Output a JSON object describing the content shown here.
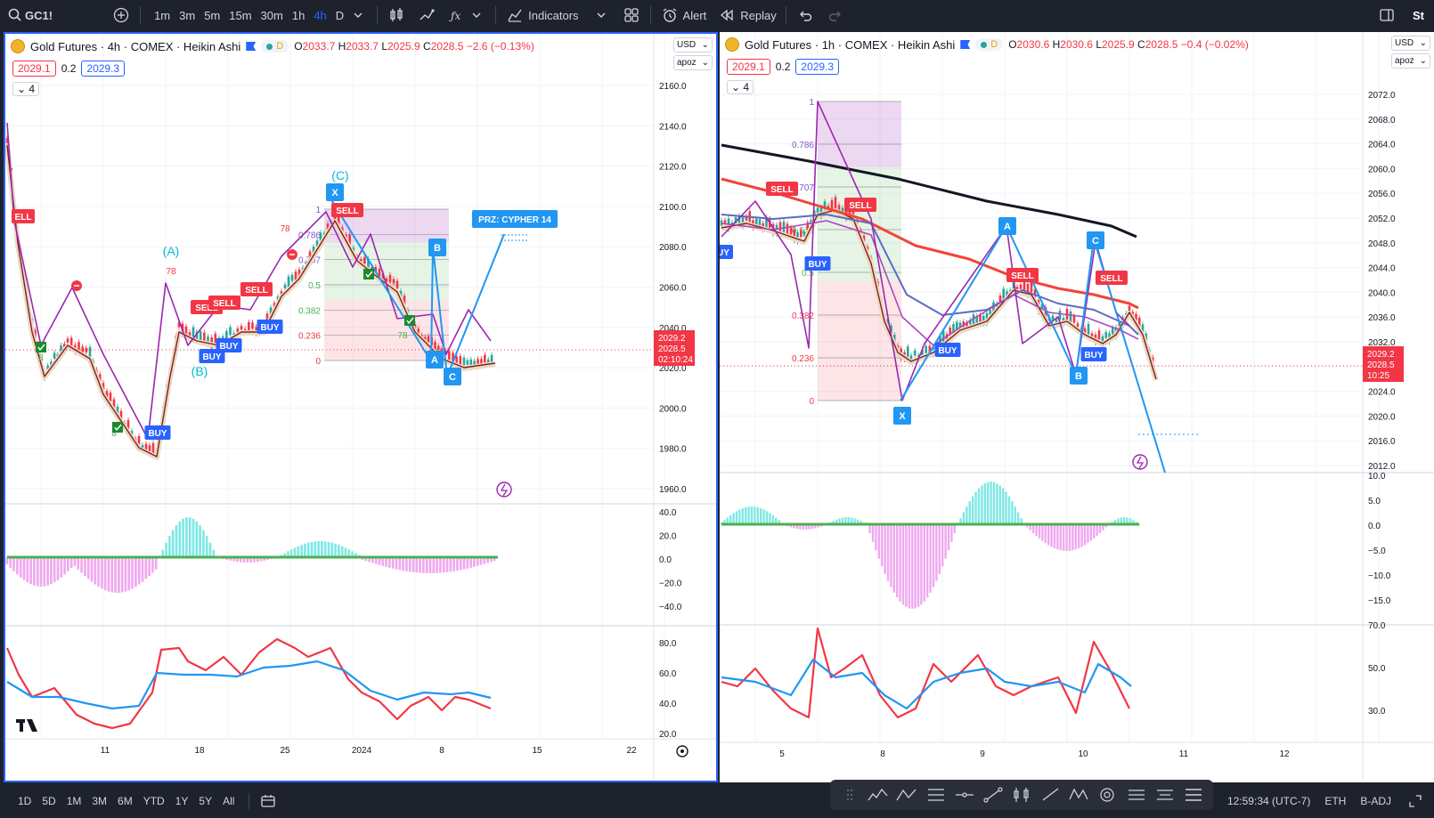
{
  "toolbar": {
    "symbol": "GC1!",
    "timeframes": [
      "1m",
      "3m",
      "5m",
      "15m",
      "30m",
      "1h",
      "4h",
      "D"
    ],
    "active_timeframe": "4h",
    "indicators_label": "Indicators",
    "alert_label": "Alert",
    "replay_label": "Replay",
    "right_cut": "St"
  },
  "left": {
    "title": "Gold Futures · 4h · COMEX · Heikin Ashi",
    "badge": "D",
    "o_label": "O",
    "o": "2033.7",
    "h_label": "H",
    "h": "2033.7",
    "l_label": "L",
    "l": "2025.9",
    "c_label": "C",
    "c": "2028.5",
    "change": "−2.6 (−0.13%)",
    "bid": "2029.1",
    "spread": "0.2",
    "ask": "2029.3",
    "collapse": "4",
    "currency": "USD",
    "scale": "apoz",
    "price_ticks": [
      "2160.0",
      "2140.0",
      "2120.0",
      "2100.0",
      "2080.0",
      "2060.0",
      "2040.0",
      "2020.0",
      "2000.0",
      "1980.0",
      "1960.0"
    ],
    "osc1_ticks": [
      "40.0",
      "20.0",
      "0.0",
      "−20.0",
      "−40.0"
    ],
    "osc2_ticks": [
      "80.0",
      "60.0",
      "40.0",
      "20.0"
    ],
    "time_ticks": [
      "11",
      "18",
      "25",
      "2024",
      "8",
      "15",
      "22"
    ],
    "price_tag_1": "2029.2",
    "price_tag_2": "2028.5",
    "countdown": "02:10:24",
    "wave_labels": [
      "(A)",
      "(B)",
      "(C)"
    ],
    "prz_label": "PRZ: CYPHER 14",
    "points": [
      "X",
      "A",
      "B",
      "C"
    ],
    "fib": [
      "1",
      "0.786",
      "0.707",
      "0.5",
      "0.382",
      "0.236",
      "0"
    ],
    "signals": {
      "sell": "SELL",
      "buy": "BUY",
      "cut_sell": "ELL",
      "cut_buy": "UY"
    },
    "small_digits": [
      "7",
      "8",
      "78",
      "11"
    ]
  },
  "right": {
    "title": "Gold Futures · 1h · COMEX · Heikin Ashi",
    "badge": "D",
    "o_label": "O",
    "o": "2030.6",
    "h_label": "H",
    "h": "2030.6",
    "l_label": "L",
    "l": "2025.9",
    "c_label": "C",
    "c": "2028.5",
    "change": "−0.4 (−0.02%)",
    "bid": "2029.1",
    "spread": "0.2",
    "ask": "2029.3",
    "collapse": "4",
    "currency": "USD",
    "scale": "apoz",
    "price_ticks": [
      "2072.0",
      "2068.0",
      "2064.0",
      "2060.0",
      "2056.0",
      "2052.0",
      "2048.0",
      "2044.0",
      "2040.0",
      "2036.0",
      "2032.0",
      "2028.0",
      "2024.0",
      "2020.0",
      "2016.0",
      "2012.0"
    ],
    "osc1_ticks": [
      "10.0",
      "5.0",
      "0.0",
      "−5.0",
      "−10.0",
      "−15.0"
    ],
    "osc2_ticks": [
      "70.0",
      "50.0",
      "30.0"
    ],
    "time_ticks": [
      "5",
      "8",
      "9",
      "10",
      "11",
      "12"
    ],
    "price_tag_1": "2029.2",
    "price_tag_2": "2028.5",
    "countdown": "10:25",
    "points": [
      "X",
      "A",
      "B",
      "C"
    ],
    "fib": [
      "1",
      "0.786",
      "0.707",
      "0.618",
      "0.5",
      "0.382",
      "0.236",
      "0"
    ],
    "signals": {
      "sell": "SELL",
      "buy": "BUY",
      "cut_buy": "UY"
    }
  },
  "bottom": {
    "ranges": [
      "1D",
      "5D",
      "1M",
      "3M",
      "6M",
      "YTD",
      "1Y",
      "5Y",
      "All"
    ],
    "clock": "12:59:34 (UTC-7)",
    "session": "ETH",
    "adj": "B-ADJ"
  },
  "colors": {
    "accent": "#2962ff",
    "up": "#26a69a",
    "down": "#f23645",
    "purple": "#9c27b0",
    "sky": "#2196f3"
  }
}
